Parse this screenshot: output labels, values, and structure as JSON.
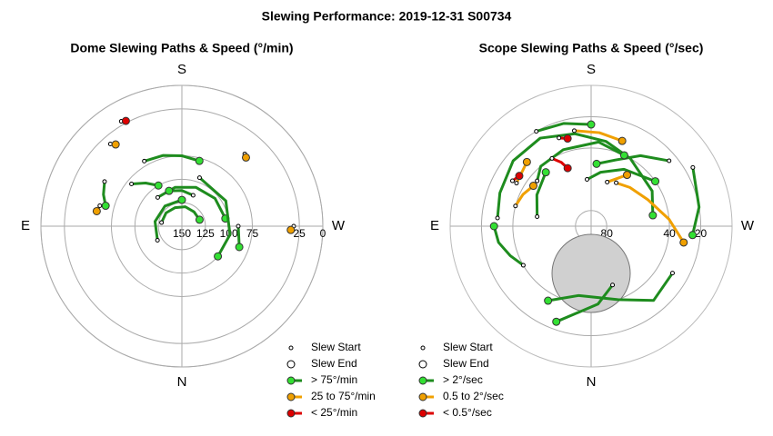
{
  "title": "Slewing Performance: 2019-12-31 S00734",
  "chart_data": [
    {
      "type": "polar",
      "title": "Dome Slewing Paths & Speed (°/min)",
      "directions": [
        "N",
        "E",
        "S",
        "W"
      ],
      "rlim": [
        150,
        0
      ],
      "rticks": [
        150,
        125,
        100,
        75,
        25,
        0
      ],
      "legend_markers": [
        "Slew Start",
        "Slew End"
      ],
      "series": [
        {
          "name": "> 75°/min",
          "color": "#1e8c1e",
          "marker_color": "#33e033",
          "paths": [
            {
              "az": [
                140,
                170,
                200,
                230,
                260
              ],
              "alt": [
                110,
                108,
                106,
                104,
                103
              ]
            },
            {
              "az": [
                60,
                100,
                140,
                180
              ],
              "alt": [
                120,
                121,
                122,
                122
              ]
            },
            {
              "az": [
                200,
                240,
                280,
                310
              ],
              "alt": [
                95,
                96,
                98,
                100
              ]
            },
            {
              "az": [
                100,
                130,
                160,
                190,
                220,
                250
              ],
              "alt": [
                128,
                128,
                129,
                129,
                130,
                130
              ]
            },
            {
              "az": [
                150,
                165,
                180,
                195
              ],
              "alt": [
                70,
                72,
                75,
                78
              ]
            },
            {
              "az": [
                130,
                140,
                150
              ],
              "alt": [
                80,
                90,
                100
              ]
            },
            {
              "az": [
                120,
                112,
                105
              ],
              "alt": [
                55,
                60,
                66
              ]
            },
            {
              "az": [
                270,
                290
              ],
              "alt": [
                90,
                85
              ]
            },
            {
              "az": [
                200,
                180,
                160
              ],
              "alt": [
                115,
                112,
                110
              ]
            }
          ]
        },
        {
          "name": "25 to 75°/min",
          "color": "#f0a000",
          "marker_color": "#f0a000",
          "paths": [
            {
              "az": [
                139,
                141
              ],
              "alt": [
                34,
                38
              ]
            },
            {
              "az": [
                221,
                223
              ],
              "alt": [
                48,
                50
              ]
            },
            {
              "az": [
                270,
                272
              ],
              "alt": [
                31,
                34
              ]
            },
            {
              "az": [
                104,
                100
              ],
              "alt": [
                60,
                58
              ]
            }
          ]
        },
        {
          "name": "< 25°/min",
          "color": "#dd0000",
          "marker_color": "#dd0000",
          "paths": [
            {
              "az": [
                150,
                152
              ],
              "alt": [
                21,
                23
              ]
            }
          ]
        }
      ]
    },
    {
      "type": "polar",
      "title": "Scope Slewing Paths & Speed (°/sec)",
      "directions": [
        "N",
        "E",
        "S",
        "W"
      ],
      "rlim": [
        90,
        0
      ],
      "rticks": [
        80,
        40,
        20
      ],
      "legend_markers": [
        "Slew Start",
        "Slew End"
      ],
      "series": [
        {
          "name": "> 2°/sec",
          "color": "#1e8c1e",
          "marker_color": "#33e033",
          "paths": [
            {
              "az": [
                95,
                110,
                130,
                150,
                170,
                190,
                210,
                240,
                260
              ],
              "alt": [
                30,
                28,
                25,
                25,
                30,
                35,
                40,
                45,
                50
              ]
            },
            {
              "az": [
                230,
                215,
                200,
                185
              ],
              "alt": [
                25,
                35,
                45,
                50
              ]
            },
            {
              "az": [
                60,
                70,
                80,
                90
              ],
              "alt": [
                40,
                35,
                30,
                28
              ]
            },
            {
              "az": [
                130,
                140,
                160,
                185,
                205
              ],
              "alt": [
                45,
                40,
                38,
                36,
                40
              ]
            },
            {
              "az": [
                150,
                165,
                180
              ],
              "alt": [
                20,
                22,
                25
              ]
            },
            {
              "az": [
                300,
                320,
                340,
                10,
                30
              ],
              "alt": [
                30,
                28,
                40,
                45,
                35
              ]
            },
            {
              "az": [
                240,
                260,
                275
              ],
              "alt": [
                15,
                20,
                25
              ]
            },
            {
              "az": [
                100,
                120,
                140
              ],
              "alt": [
                55,
                50,
                45
              ]
            },
            {
              "az": [
                340,
                355,
                20
              ],
              "alt": [
                50,
                40,
                25
              ]
            },
            {
              "az": [
                175,
                190,
                210,
                235
              ],
              "alt": [
                60,
                55,
                48,
                40
              ]
            }
          ]
        },
        {
          "name": "0.5 to 2°/sec",
          "color": "#f0a000",
          "marker_color": "#f0a000",
          "paths": [
            {
              "az": [
                170,
                185,
                200
              ],
              "alt": [
                28,
                30,
                32
              ]
            },
            {
              "az": [
                210,
                225,
                245,
                265,
                280
              ],
              "alt": [
                58,
                55,
                50,
                40,
                30
              ]
            },
            {
              "az": [
                105,
                115,
                125
              ],
              "alt": [
                40,
                42,
                45
              ]
            },
            {
              "az": [
                120,
                135
              ],
              "alt": [
                35,
                32
              ]
            },
            {
              "az": [
                200,
                215
              ],
              "alt": [
                60,
                50
              ]
            }
          ]
        },
        {
          "name": "< 0.5°/sec",
          "color": "#dd0000",
          "marker_color": "#dd0000",
          "paths": [
            {
              "az": [
                150,
                155,
                158
              ],
              "alt": [
                40,
                45,
                50
              ]
            },
            {
              "az": [
                160,
                165
              ],
              "alt": [
                30,
                32
              ]
            },
            {
              "az": [
                120,
                125
              ],
              "alt": [
                32,
                34
              ]
            }
          ]
        }
      ]
    }
  ]
}
